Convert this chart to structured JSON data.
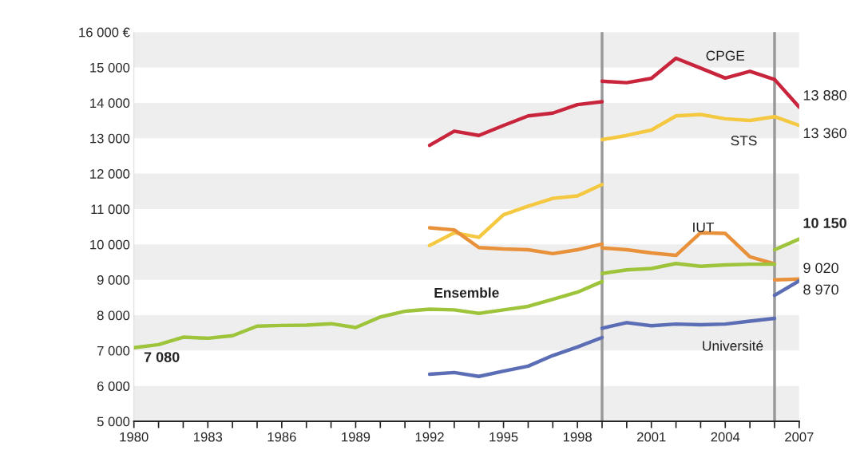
{
  "chart_data": {
    "type": "line",
    "xlim": [
      1980,
      2007
    ],
    "xticks": [
      1980,
      {
        "value": 1981,
        "label": null
      },
      {
        "value": 1982,
        "label": null
      },
      1983,
      {
        "value": 1984,
        "label": null
      },
      {
        "value": 1985,
        "label": null
      },
      1986,
      {
        "value": 1987,
        "label": null
      },
      {
        "value": 1988,
        "label": null
      },
      1989,
      {
        "value": 1990,
        "label": null
      },
      {
        "value": 1991,
        "label": null
      },
      1992,
      {
        "value": 1993,
        "label": null
      },
      {
        "value": 1994,
        "label": null
      },
      1995,
      {
        "value": 1996,
        "label": null
      },
      {
        "value": 1997,
        "label": null
      },
      1998,
      {
        "value": 1999,
        "label": null
      },
      {
        "value": 2000,
        "label": null
      },
      2001,
      {
        "value": 2002,
        "label": null
      },
      {
        "value": 2003,
        "label": null
      },
      2004,
      {
        "value": 2005,
        "label": null
      },
      {
        "value": 2006,
        "label": null
      },
      2007
    ],
    "ylim": [
      5000,
      16000
    ],
    "yticks": [
      {
        "value": 5000,
        "label": "5 000"
      },
      {
        "value": 6000,
        "label": "6 000"
      },
      {
        "value": 7000,
        "label": "7 000"
      },
      {
        "value": 8000,
        "label": "8 000"
      },
      {
        "value": 9000,
        "label": "9 000"
      },
      {
        "value": 10000,
        "label": "10 000"
      },
      {
        "value": 11000,
        "label": "11 000"
      },
      {
        "value": 12000,
        "label": "12 000"
      },
      {
        "value": 13000,
        "label": "13 000"
      },
      {
        "value": 14000,
        "label": "14 000"
      },
      {
        "value": 15000,
        "label": "15 000"
      },
      {
        "value": 16000,
        "label": "16 000 €"
      }
    ],
    "legend": false,
    "marker": "none",
    "line_style": "solid",
    "bands": [
      {
        "axis": "y",
        "from": 5000,
        "to": 6000,
        "color": "#eeeeee"
      },
      {
        "axis": "y",
        "from": 7000,
        "to": 8000,
        "color": "#eeeeee"
      },
      {
        "axis": "y",
        "from": 9000,
        "to": 10000,
        "color": "#eeeeee"
      },
      {
        "axis": "y",
        "from": 11000,
        "to": 12000,
        "color": "#eeeeee"
      },
      {
        "axis": "y",
        "from": 13000,
        "to": 14000,
        "color": "#eeeeee"
      },
      {
        "axis": "y",
        "from": 15000,
        "to": 16000,
        "color": "#eeeeee"
      }
    ],
    "ref_lines": [
      {
        "axis": "x",
        "value": 1999,
        "color": "#999999"
      },
      {
        "axis": "x",
        "value": 2006,
        "color": "#999999"
      }
    ],
    "series": [
      {
        "color": "#c8243c",
        "x": [
          1992,
          1993,
          1994,
          1995,
          1996,
          1997,
          1998,
          1999
        ],
        "values": [
          12800,
          13200,
          13080,
          13360,
          13630,
          13710,
          13950,
          14030
        ]
      },
      {
        "name": "CPGE",
        "color": "#c8243c",
        "x": [
          1999,
          2000,
          2001,
          2002,
          2003,
          2004,
          2005,
          2006
        ],
        "values": [
          14610,
          14570,
          14690,
          15260,
          14980,
          14700,
          14890,
          14660
        ]
      },
      {
        "color": "#c8243c",
        "x": [
          2006,
          2007
        ],
        "values": [
          14660,
          13880
        ],
        "value_labels": [
          null,
          "13 880"
        ]
      },
      {
        "color": "#f5c842",
        "x": [
          1992,
          1993,
          1994,
          1995,
          1996,
          1997,
          1998,
          1999
        ],
        "values": [
          9970,
          10330,
          10200,
          10840,
          11080,
          11300,
          11370,
          11690
        ]
      },
      {
        "name": "STS",
        "color": "#f5c842",
        "x": [
          1999,
          2000,
          2001,
          2002,
          2003,
          2004,
          2005,
          2006
        ],
        "values": [
          12960,
          13080,
          13230,
          13630,
          13670,
          13550,
          13500,
          13610
        ]
      },
      {
        "color": "#f5c842",
        "x": [
          2006,
          2007
        ],
        "values": [
          13610,
          13360
        ],
        "value_labels": [
          null,
          "13 360"
        ]
      },
      {
        "color": "#e8913a",
        "x": [
          1992,
          1993,
          1994,
          1995,
          1996,
          1997,
          1998,
          1999
        ],
        "values": [
          10470,
          10410,
          9910,
          9870,
          9850,
          9740,
          9850,
          10010
        ]
      },
      {
        "name": "IUT",
        "color": "#e8913a",
        "x": [
          1999,
          2000,
          2001,
          2002,
          2003,
          2004,
          2005,
          2006
        ],
        "values": [
          9900,
          9850,
          9760,
          9690,
          10330,
          10310,
          9650,
          9450
        ]
      },
      {
        "color": "#e8913a",
        "x": [
          2006,
          2007
        ],
        "values": [
          9000,
          9020
        ],
        "value_labels": [
          null,
          "9 020"
        ]
      },
      {
        "name": "Ensemble",
        "color": "#9dc43a",
        "x": [
          1980,
          1981,
          1982,
          1983,
          1984,
          1985,
          1986,
          1987,
          1988,
          1989,
          1990,
          1991,
          1992,
          1993,
          1994,
          1995,
          1996,
          1997,
          1998,
          1999
        ],
        "values": [
          7080,
          7170,
          7380,
          7350,
          7420,
          7690,
          7710,
          7720,
          7760,
          7650,
          7950,
          8110,
          8170,
          8150,
          8050,
          8150,
          8250,
          8450,
          8650,
          8950
        ],
        "value_labels": [
          "7 080",
          null,
          null,
          null,
          null,
          null,
          null,
          null,
          null,
          null,
          null,
          null,
          null,
          null,
          null,
          null,
          null,
          null,
          null,
          null
        ]
      },
      {
        "color": "#9dc43a",
        "x": [
          1999,
          2000,
          2001,
          2002,
          2003,
          2004,
          2005,
          2006
        ],
        "values": [
          9180,
          9280,
          9320,
          9460,
          9380,
          9420,
          9440,
          9440
        ]
      },
      {
        "color": "#9dc43a",
        "x": [
          2006,
          2007
        ],
        "values": [
          9850,
          10150
        ],
        "value_labels": [
          null,
          "10 150"
        ]
      },
      {
        "color": "#5b6db5",
        "x": [
          1992,
          1993,
          1994,
          1995,
          1996,
          1997,
          1998,
          1999
        ],
        "values": [
          6330,
          6380,
          6270,
          6420,
          6560,
          6860,
          7100,
          7370
        ]
      },
      {
        "name": "Université",
        "color": "#5b6db5",
        "x": [
          1999,
          2000,
          2001,
          2002,
          2003,
          2004,
          2005,
          2006
        ],
        "values": [
          7630,
          7790,
          7700,
          7750,
          7730,
          7750,
          7830,
          7910
        ]
      },
      {
        "color": "#5b6db5",
        "x": [
          2006,
          2007
        ],
        "values": [
          8560,
          8970
        ],
        "value_labels": [
          null,
          "8 970"
        ]
      }
    ]
  }
}
